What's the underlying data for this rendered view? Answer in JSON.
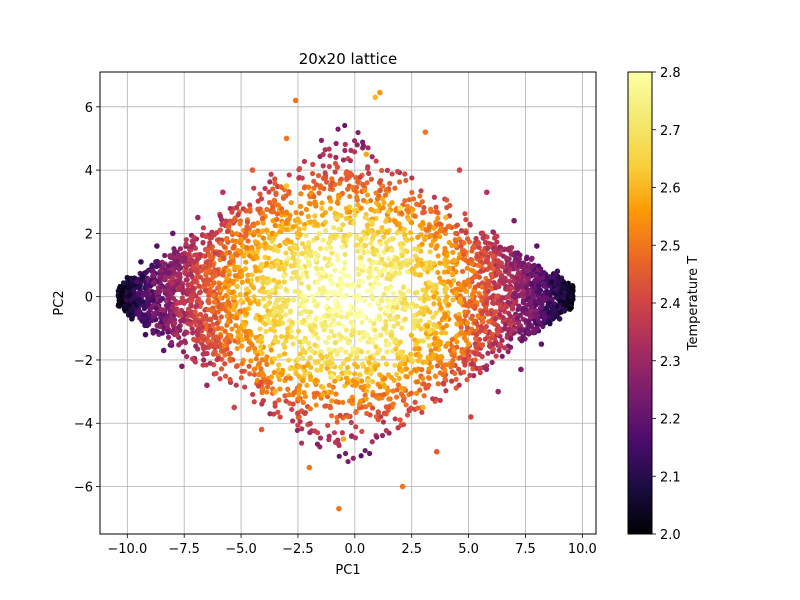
{
  "chart_data": {
    "type": "scatter",
    "title": "20x20 lattice",
    "xlabel": "PC1",
    "ylabel": "PC2",
    "xlim": [
      -11.2,
      10.6
    ],
    "ylim": [
      -7.5,
      7.1
    ],
    "x_ticks": [
      -10.0,
      -7.5,
      -5.0,
      -2.5,
      0.0,
      2.5,
      5.0,
      7.5,
      10.0
    ],
    "x_tick_labels": [
      "−10.0",
      "−7.5",
      "−5.0",
      "−2.5",
      "0.0",
      "2.5",
      "5.0",
      "7.5",
      "10.0"
    ],
    "y_ticks": [
      -6,
      -4,
      -2,
      0,
      2,
      4,
      6
    ],
    "y_tick_labels": [
      "−6",
      "−4",
      "−2",
      "0",
      "2",
      "4",
      "6"
    ],
    "grid": true,
    "colorbar": {
      "label": "Temperature T",
      "cmap": "inferno",
      "range": [
        2.0,
        2.8
      ],
      "ticks": [
        2.0,
        2.1,
        2.2,
        2.3,
        2.4,
        2.5,
        2.6,
        2.7,
        2.8
      ],
      "tick_labels": [
        "2.0",
        "2.1",
        "2.2",
        "2.3",
        "2.4",
        "2.5",
        "2.6",
        "2.7",
        "2.8"
      ]
    },
    "points": [
      {
        "x": -10.3,
        "y": 0.0,
        "t": 2.02
      },
      {
        "x": -10.0,
        "y": 0.6,
        "t": 2.06
      },
      {
        "x": -9.8,
        "y": -0.7,
        "t": 2.08
      },
      {
        "x": -9.4,
        "y": 1.1,
        "t": 2.12
      },
      {
        "x": -9.2,
        "y": -1.2,
        "t": 2.14
      },
      {
        "x": -8.7,
        "y": 1.6,
        "t": 2.18
      },
      {
        "x": -8.4,
        "y": -1.7,
        "t": 2.2
      },
      {
        "x": -8.0,
        "y": 2.0,
        "t": 2.22
      },
      {
        "x": -7.6,
        "y": -2.2,
        "t": 2.25
      },
      {
        "x": -6.9,
        "y": 2.5,
        "t": 2.3
      },
      {
        "x": -6.5,
        "y": -2.8,
        "t": 2.3
      },
      {
        "x": -5.8,
        "y": 3.3,
        "t": 2.35
      },
      {
        "x": -5.3,
        "y": -3.5,
        "t": 2.4
      },
      {
        "x": -4.5,
        "y": 4.0,
        "t": 2.45
      },
      {
        "x": -4.1,
        "y": -4.2,
        "t": 2.45
      },
      {
        "x": -3.0,
        "y": 5.0,
        "t": 2.5
      },
      {
        "x": -2.0,
        "y": -5.4,
        "t": 2.5
      },
      {
        "x": -2.6,
        "y": 6.2,
        "t": 2.5
      },
      {
        "x": -0.7,
        "y": -6.7,
        "t": 2.5
      },
      {
        "x": 0.9,
        "y": 6.3,
        "t": 2.6
      },
      {
        "x": 1.1,
        "y": 6.45,
        "t": 2.55
      },
      {
        "x": 2.1,
        "y": -6.0,
        "t": 2.5
      },
      {
        "x": 3.1,
        "y": 5.2,
        "t": 2.5
      },
      {
        "x": 3.6,
        "y": -4.9,
        "t": 2.45
      },
      {
        "x": 4.6,
        "y": 4.0,
        "t": 2.4
      },
      {
        "x": 5.1,
        "y": -3.8,
        "t": 2.4
      },
      {
        "x": 5.8,
        "y": 3.3,
        "t": 2.35
      },
      {
        "x": 6.3,
        "y": -3.0,
        "t": 2.3
      },
      {
        "x": 7.0,
        "y": 2.4,
        "t": 2.25
      },
      {
        "x": 7.3,
        "y": -2.3,
        "t": 2.25
      },
      {
        "x": 8.0,
        "y": 1.6,
        "t": 2.2
      },
      {
        "x": 8.2,
        "y": -1.5,
        "t": 2.2
      },
      {
        "x": 8.9,
        "y": 0.8,
        "t": 2.14
      },
      {
        "x": 9.0,
        "y": -0.7,
        "t": 2.12
      },
      {
        "x": 9.5,
        "y": 0.0,
        "t": 2.06
      },
      {
        "x": -7.0,
        "y": 0.5,
        "t": 2.4
      },
      {
        "x": -6.0,
        "y": -1.0,
        "t": 2.48
      },
      {
        "x": -5.0,
        "y": 1.8,
        "t": 2.55
      },
      {
        "x": 6.0,
        "y": 0.7,
        "t": 2.45
      },
      {
        "x": 5.0,
        "y": -1.5,
        "t": 2.55
      },
      {
        "x": 4.0,
        "y": 2.5,
        "t": 2.6
      },
      {
        "x": -2.0,
        "y": 1.0,
        "t": 2.75
      },
      {
        "x": 0.0,
        "y": 0.0,
        "t": 2.78
      },
      {
        "x": 1.5,
        "y": -1.5,
        "t": 2.76
      },
      {
        "x": -1.0,
        "y": -2.5,
        "t": 2.72
      },
      {
        "x": 2.0,
        "y": 2.8,
        "t": 2.7
      },
      {
        "x": -3.0,
        "y": 3.5,
        "t": 2.62
      },
      {
        "x": 3.0,
        "y": -3.5,
        "t": 2.6
      },
      {
        "x": -3.5,
        "y": -3.0,
        "t": 2.6
      },
      {
        "x": 0.5,
        "y": 4.5,
        "t": 2.58
      },
      {
        "x": -0.5,
        "y": -4.5,
        "t": 2.58
      }
    ]
  }
}
